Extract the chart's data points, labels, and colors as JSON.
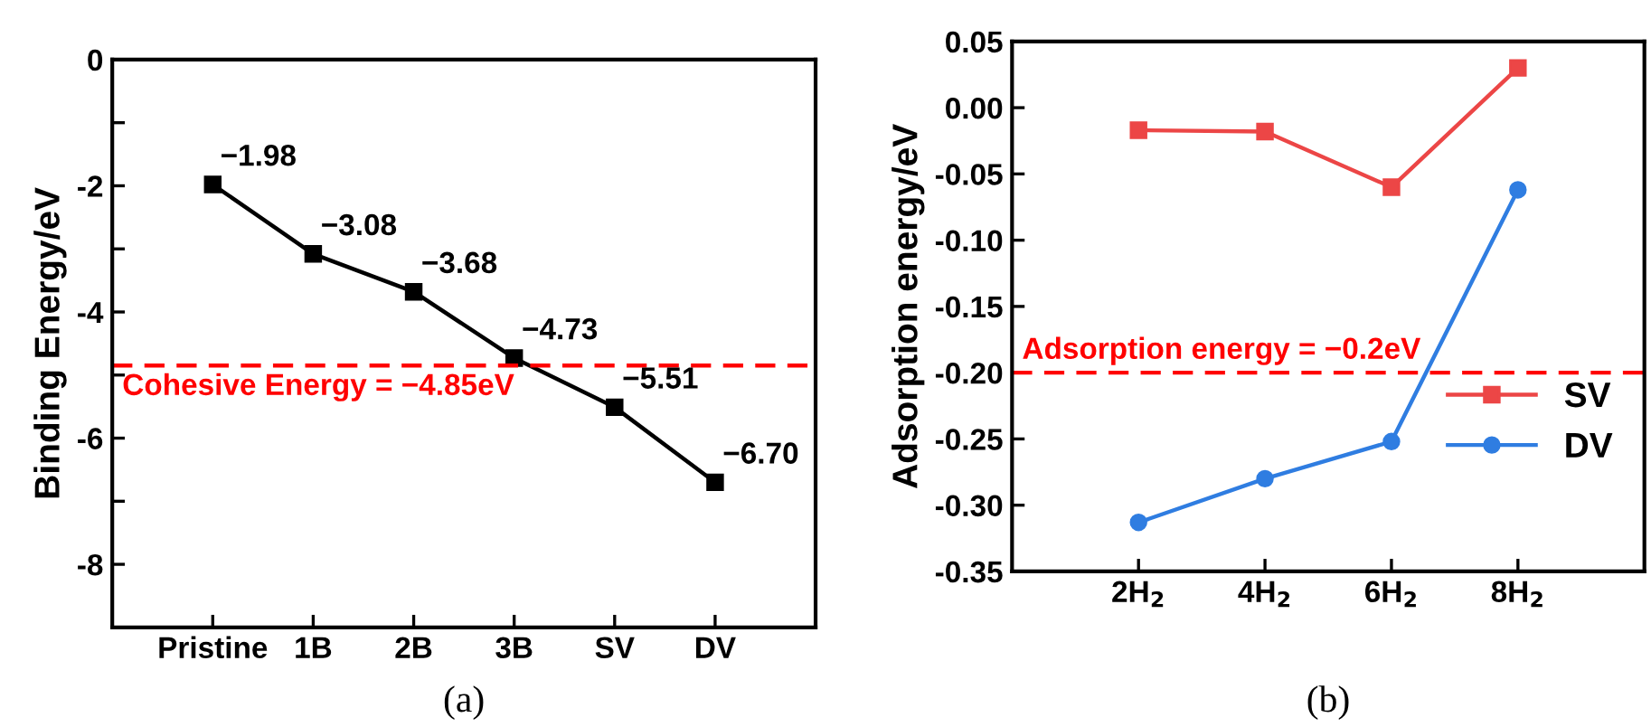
{
  "chart_data": [
    {
      "type": "line",
      "ylabel": "Binding Energy/eV",
      "categories": [
        "Pristine",
        "1B",
        "2B",
        "3B",
        "SV",
        "DV"
      ],
      "series": [
        {
          "color": "#000000",
          "marker": "square",
          "values": [
            -1.98,
            -3.08,
            -3.68,
            -4.73,
            -5.51,
            -6.7
          ],
          "value_labels": [
            "−1.98",
            "−3.08",
            "−3.68",
            "−4.73",
            "−5.51",
            "−6.70"
          ]
        }
      ],
      "ylim": [
        -9,
        0
      ],
      "yticks": [
        {
          "value": -8,
          "label": "-8"
        },
        {
          "value": -7,
          "label": null
        },
        {
          "value": -6,
          "label": "-6"
        },
        {
          "value": -5,
          "label": null
        },
        {
          "value": -4,
          "label": "-4"
        },
        {
          "value": -3,
          "label": null
        },
        {
          "value": -2,
          "label": "-2"
        },
        {
          "value": -1,
          "label": null
        },
        0
      ],
      "ref_lines": [
        {
          "axis": "y",
          "value": -4.85,
          "label": "Cohesive Energy = −4.85eV",
          "color": "#ff0000",
          "line_style": "dashed"
        }
      ],
      "annotations": [
        "(a)"
      ]
    },
    {
      "type": "line",
      "ylabel": "Adsorption energy/eV",
      "categories": [
        "2H$_{2}$",
        "4H$_{2}$",
        "6H$_{2}$",
        "8H$_{2}$"
      ],
      "series": [
        {
          "name": "SV",
          "color": "#ec4646",
          "marker": "square",
          "values": [
            -0.017,
            -0.018,
            -0.06,
            0.03
          ]
        },
        {
          "name": "DV",
          "color": "#2f7de1",
          "marker": "circle",
          "values": [
            -0.313,
            -0.28,
            -0.252,
            -0.062
          ]
        }
      ],
      "ylim": [
        -0.35,
        0.05
      ],
      "yticks": [
        {
          "value": -0.35,
          "label": "-0.35"
        },
        {
          "value": -0.3,
          "label": "-0.30"
        },
        {
          "value": -0.25,
          "label": "-0.25"
        },
        {
          "value": -0.2,
          "label": "-0.20"
        },
        {
          "value": -0.15,
          "label": "-0.15"
        },
        {
          "value": -0.1,
          "label": "-0.10"
        },
        {
          "value": -0.05,
          "label": "-0.05"
        },
        {
          "value": 0,
          "label": "0.00"
        },
        {
          "value": 0.05,
          "label": "0.05"
        }
      ],
      "ref_lines": [
        {
          "axis": "y",
          "value": -0.2,
          "label": "Adsorption energy = −0.2eV",
          "color": "#ff0000",
          "line_style": "dashed"
        }
      ],
      "legend": "right",
      "annotations": [
        "(b)"
      ]
    }
  ]
}
